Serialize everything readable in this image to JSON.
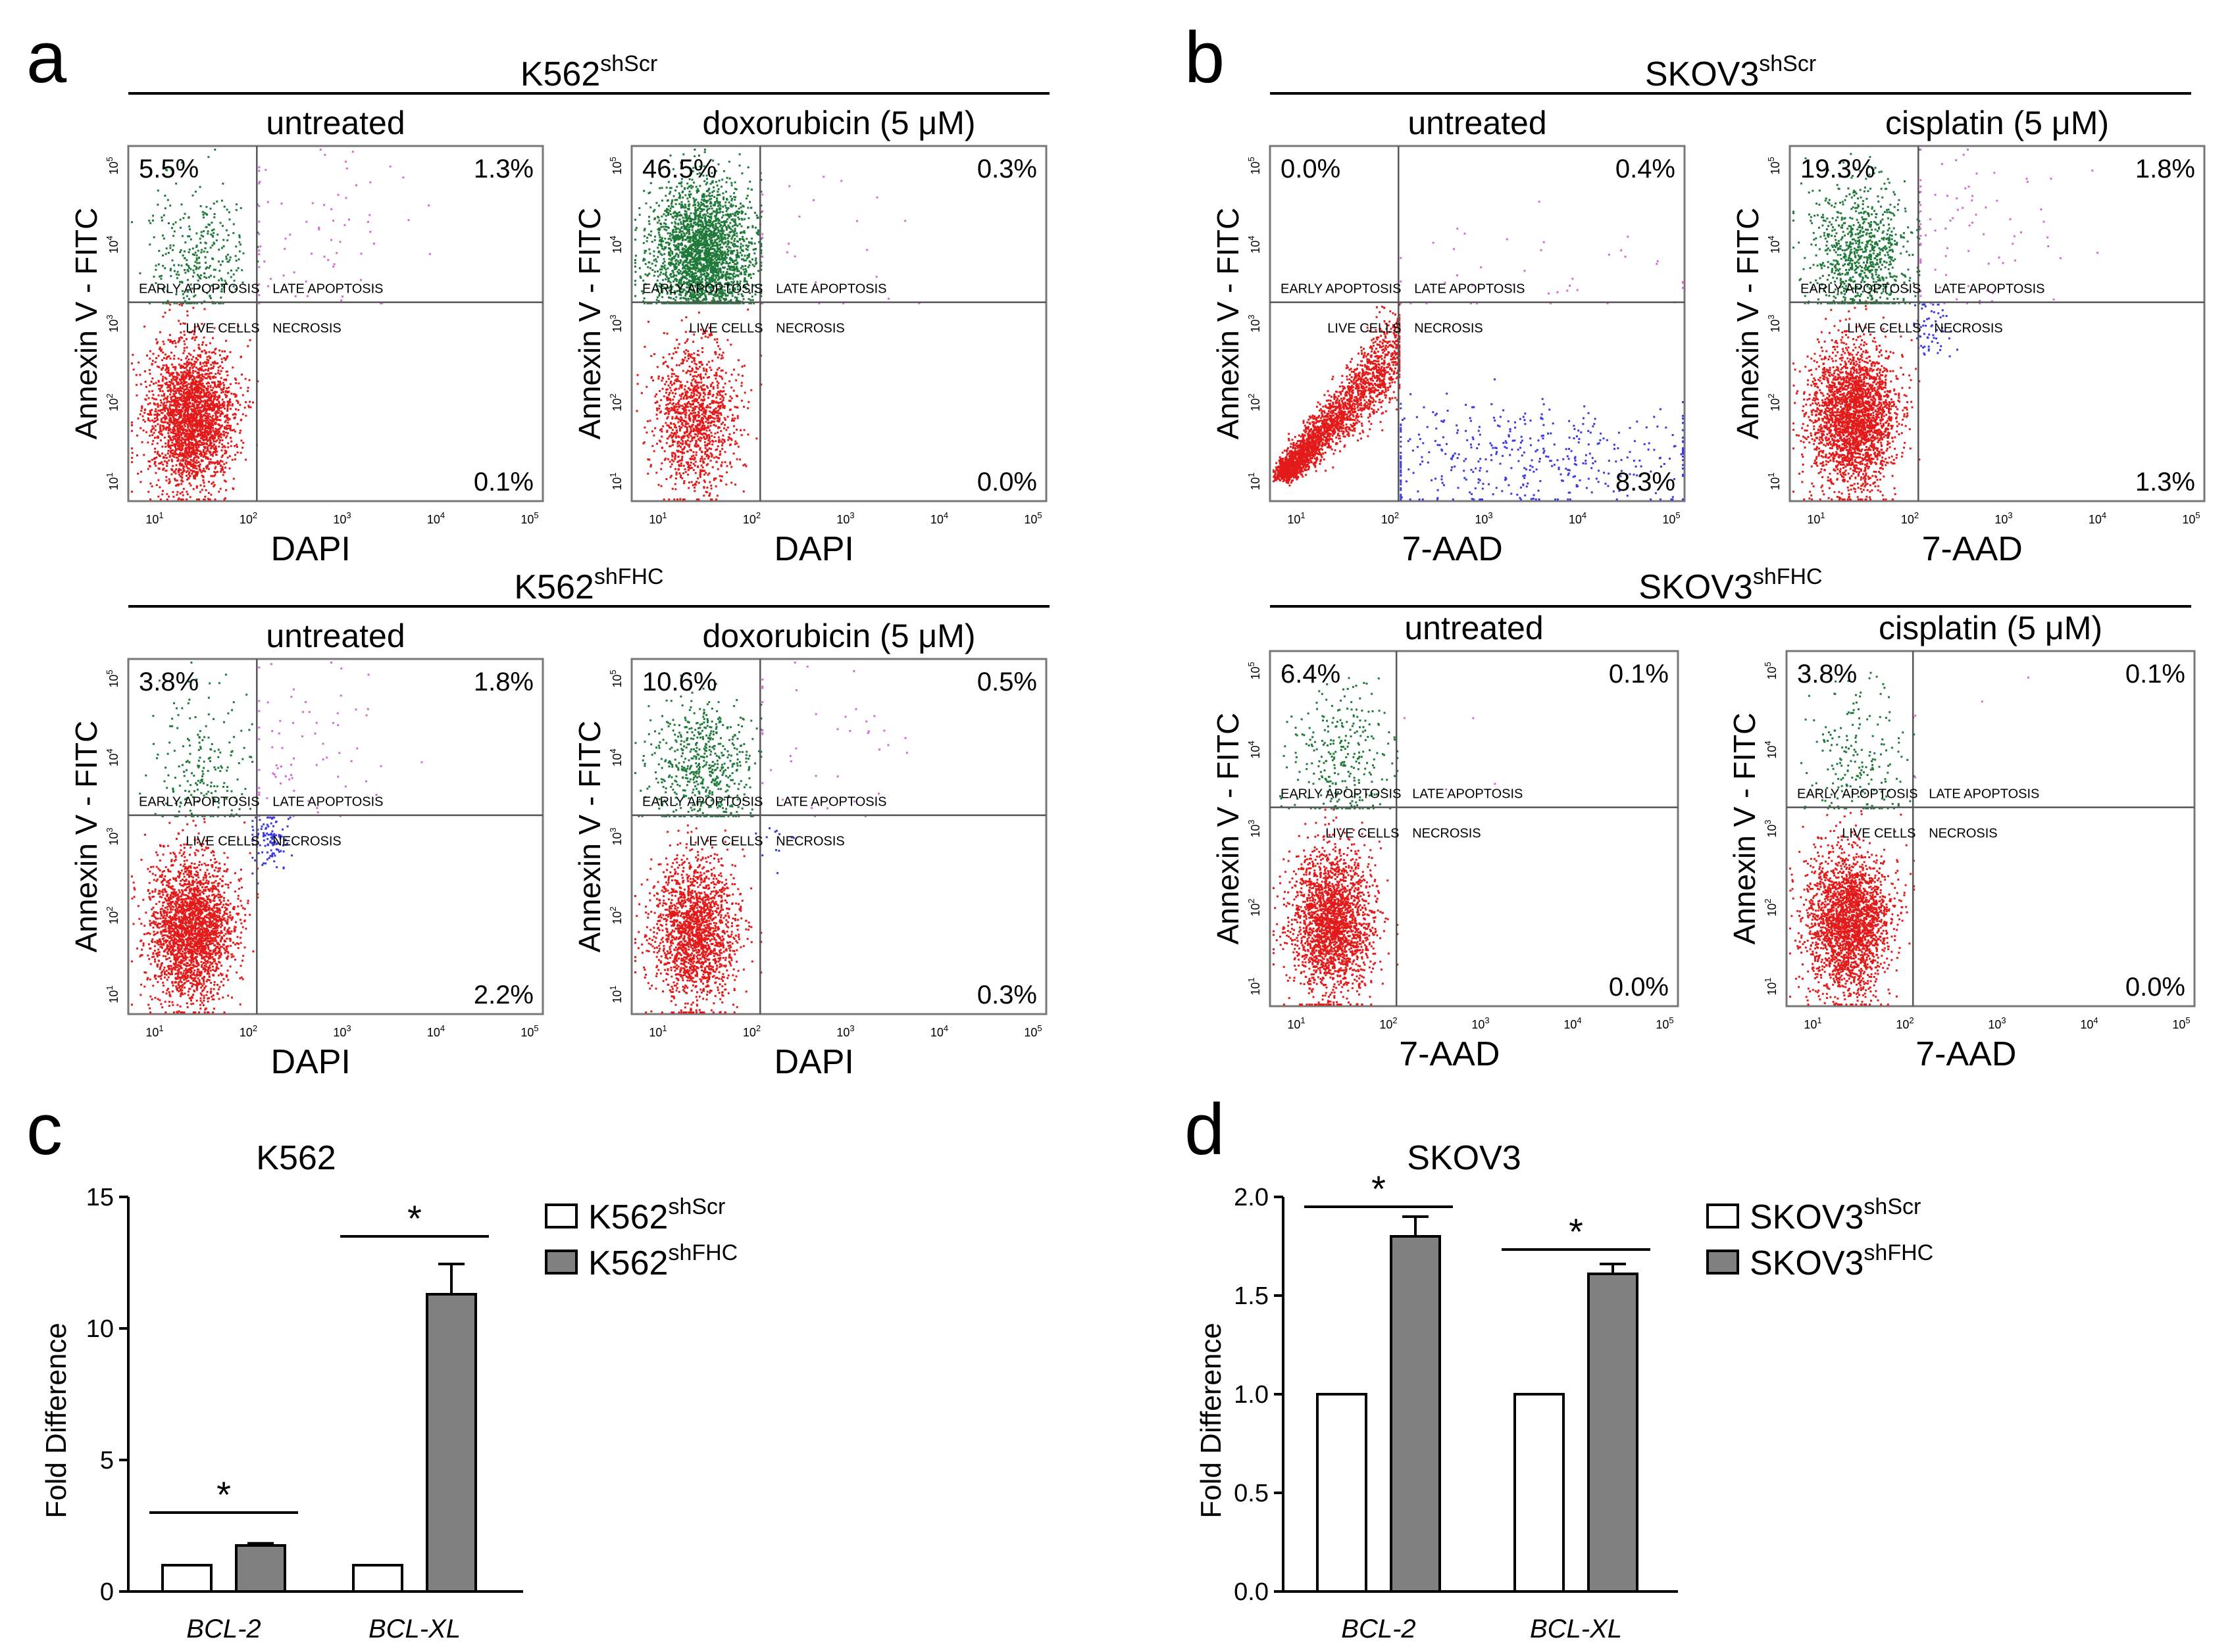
{
  "panel_letters": [
    "a",
    "b",
    "c",
    "d"
  ],
  "flow": {
    "quadrant_labels": {
      "early": "EARLY APOPTOSIS",
      "late": "LATE APOPTOSIS",
      "live": "LIVE CELLS",
      "necrosis": "NECROSIS"
    },
    "ticks": [
      "10",
      "10",
      "10",
      "10",
      "10"
    ],
    "tick_exponents": [
      "1",
      "2",
      "3",
      "4",
      "5"
    ],
    "ylabel": "Annexin V - FITC",
    "groups": [
      {
        "name": "K562",
        "sup": "shScr",
        "panel": "a",
        "xlabel": "DAPI",
        "plots": [
          {
            "condition": "untreated",
            "q_ul": "5.5%",
            "q_ur": "1.3%",
            "q_ll": "",
            "q_lr": "0.1%",
            "populations": {
              "live": 2600,
              "early": 320,
              "late": 70,
              "necrosis": 0
            }
          },
          {
            "condition": "doxorubicin (5 μM)",
            "q_ul": "46.5%",
            "q_ur": "0.3%",
            "q_ll": "",
            "q_lr": "0.0%",
            "populations": {
              "live": 1200,
              "early": 2600,
              "late": 25,
              "necrosis": 0
            }
          }
        ]
      },
      {
        "name": "K562",
        "sup": "shFHC",
        "panel": "a",
        "xlabel": "DAPI",
        "plots": [
          {
            "condition": "untreated",
            "q_ul": "3.8%",
            "q_r_top": "",
            "q_ur": "1.8%",
            "q_ll": "",
            "q_lr": "2.2%",
            "populations": {
              "live": 2500,
              "early": 200,
              "late": 70,
              "necrosis": 110
            }
          },
          {
            "condition": "doxorubicin (5 μM)",
            "q_ul": "10.6%",
            "q_ur": "0.5%",
            "q_ll": "",
            "q_lr": "0.3%",
            "populations": {
              "live": 1800,
              "early": 600,
              "late": 40,
              "necrosis": 12
            }
          }
        ]
      },
      {
        "name": "SKOV3",
        "sup": "shScr",
        "panel": "b",
        "xlabel": "7-AAD",
        "plots": [
          {
            "condition": "untreated",
            "q_ul": "0.0%",
            "q_ur": "0.4%",
            "q_ll": "",
            "q_lr": "8.3%",
            "populations": {
              "live": 2600,
              "early": 0,
              "late": 40,
              "necrosis": 420
            }
          },
          {
            "condition": "cisplatin (5 μM)",
            "q_ul": "19.3%",
            "q_ur": "1.8%",
            "q_ll": "",
            "q_lr": "1.3%",
            "populations": {
              "live": 2600,
              "early": 900,
              "late": 80,
              "necrosis": 60
            }
          }
        ]
      },
      {
        "name": "SKOV3",
        "sup": "shFHC",
        "panel": "b",
        "xlabel": "7-AAD",
        "plots": [
          {
            "condition": "untreated",
            "q_ul": "6.4%",
            "q_ur": "0.1%",
            "q_ll": "",
            "q_lr": "0.0%",
            "populations": {
              "live": 2200,
              "early": 280,
              "late": 4,
              "necrosis": 0
            }
          },
          {
            "condition": "cisplatin (5 μM)",
            "q_ul": "3.8%",
            "q_ur": "0.1%",
            "q_ll": "",
            "q_lr": "0.0%",
            "populations": {
              "live": 2400,
              "early": 200,
              "late": 4,
              "necrosis": 0
            }
          }
        ]
      }
    ]
  },
  "chart_data": [
    {
      "type": "bar",
      "panel": "c",
      "title": "K562",
      "ylabel": "Fold Difference",
      "xlabel": "",
      "ylim": [
        0,
        15
      ],
      "yticks": [
        "0",
        "5",
        "10",
        "15"
      ],
      "categories": [
        "BCL-2",
        "BCL-XL"
      ],
      "series": [
        {
          "name": "K562",
          "sup": "shScr",
          "values": [
            1.0,
            1.0
          ],
          "errors": [
            0,
            0
          ],
          "color": "#ffffff"
        },
        {
          "name": "K562",
          "sup": "shFHC",
          "values": [
            1.75,
            11.3
          ],
          "errors": [
            0.08,
            1.15
          ],
          "color": "#808080"
        }
      ],
      "significance": [
        "*",
        "*"
      ],
      "legend": "top-right"
    },
    {
      "type": "bar",
      "panel": "d",
      "title": "SKOV3",
      "ylabel": "Fold Difference",
      "xlabel": "",
      "ylim": [
        0,
        2.0
      ],
      "yticks": [
        "0.0",
        "0.5",
        "1.0",
        "1.5",
        "2.0"
      ],
      "categories": [
        "BCL-2",
        "BCL-XL"
      ],
      "series": [
        {
          "name": "SKOV3",
          "sup": "shScr",
          "values": [
            1.0,
            1.0
          ],
          "errors": [
            0,
            0
          ],
          "color": "#ffffff"
        },
        {
          "name": "SKOV3",
          "sup": "shFHC",
          "values": [
            1.8,
            1.61
          ],
          "errors": [
            0.1,
            0.05
          ],
          "color": "#808080"
        }
      ],
      "significance": [
        "*",
        "*"
      ],
      "legend": "top-right"
    }
  ],
  "colors": {
    "live": "#e31a1a",
    "early": "#1f7a3a",
    "late": "#d86ad8",
    "necrosis": "#3a3ae0",
    "gate": "#555555",
    "frame": "#777777",
    "bar_gray": "#808080"
  }
}
